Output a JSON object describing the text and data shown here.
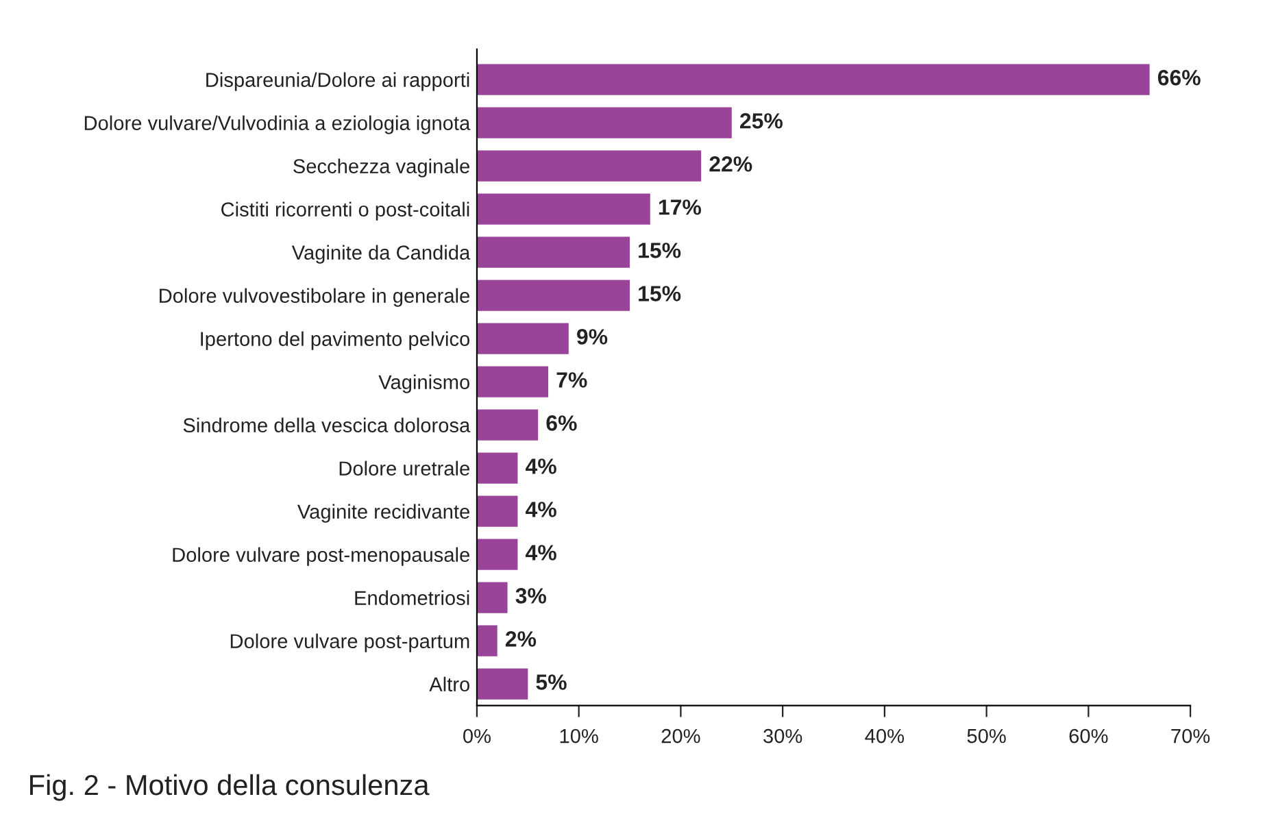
{
  "chart_data": {
    "type": "bar",
    "orientation": "horizontal",
    "title": "Fig. 2 - Motivo della consulenza",
    "categories": [
      "Dispareunia/Dolore ai rapporti",
      "Dolore vulvare/Vulvodinia a eziologia ignota",
      "Secchezza vaginale",
      "Cistiti ricorrenti o post-coitali",
      "Vaginite da Candida",
      "Dolore vulvovestibolare in generale",
      "Ipertono del pavimento pelvico",
      "Vaginismo",
      "Sindrome della vescica dolorosa",
      "Dolore uretrale",
      "Vaginite recidivante",
      "Dolore vulvare post-menopausale",
      "Endometriosi",
      "Dolore vulvare post-partum",
      "Altro"
    ],
    "values": [
      66,
      25,
      22,
      17,
      15,
      15,
      9,
      7,
      6,
      4,
      4,
      4,
      3,
      2,
      5
    ],
    "value_labels": [
      "66%",
      "25%",
      "22%",
      "17%",
      "15%",
      "15%",
      "9%",
      "7%",
      "6%",
      "4%",
      "4%",
      "4%",
      "3%",
      "2%",
      "5%"
    ],
    "color": "#9a4499",
    "xlim": [
      0,
      70
    ],
    "xticks": [
      {
        "value": 0,
        "label": "0%"
      },
      {
        "value": 10,
        "label": "10%"
      },
      {
        "value": 20,
        "label": "20%"
      },
      {
        "value": 30,
        "label": "30%"
      },
      {
        "value": 40,
        "label": "40%"
      },
      {
        "value": 50,
        "label": "50%"
      },
      {
        "value": 60,
        "label": "60%"
      },
      {
        "value": 70,
        "label": "70%"
      }
    ],
    "grid": false,
    "legend": false
  }
}
